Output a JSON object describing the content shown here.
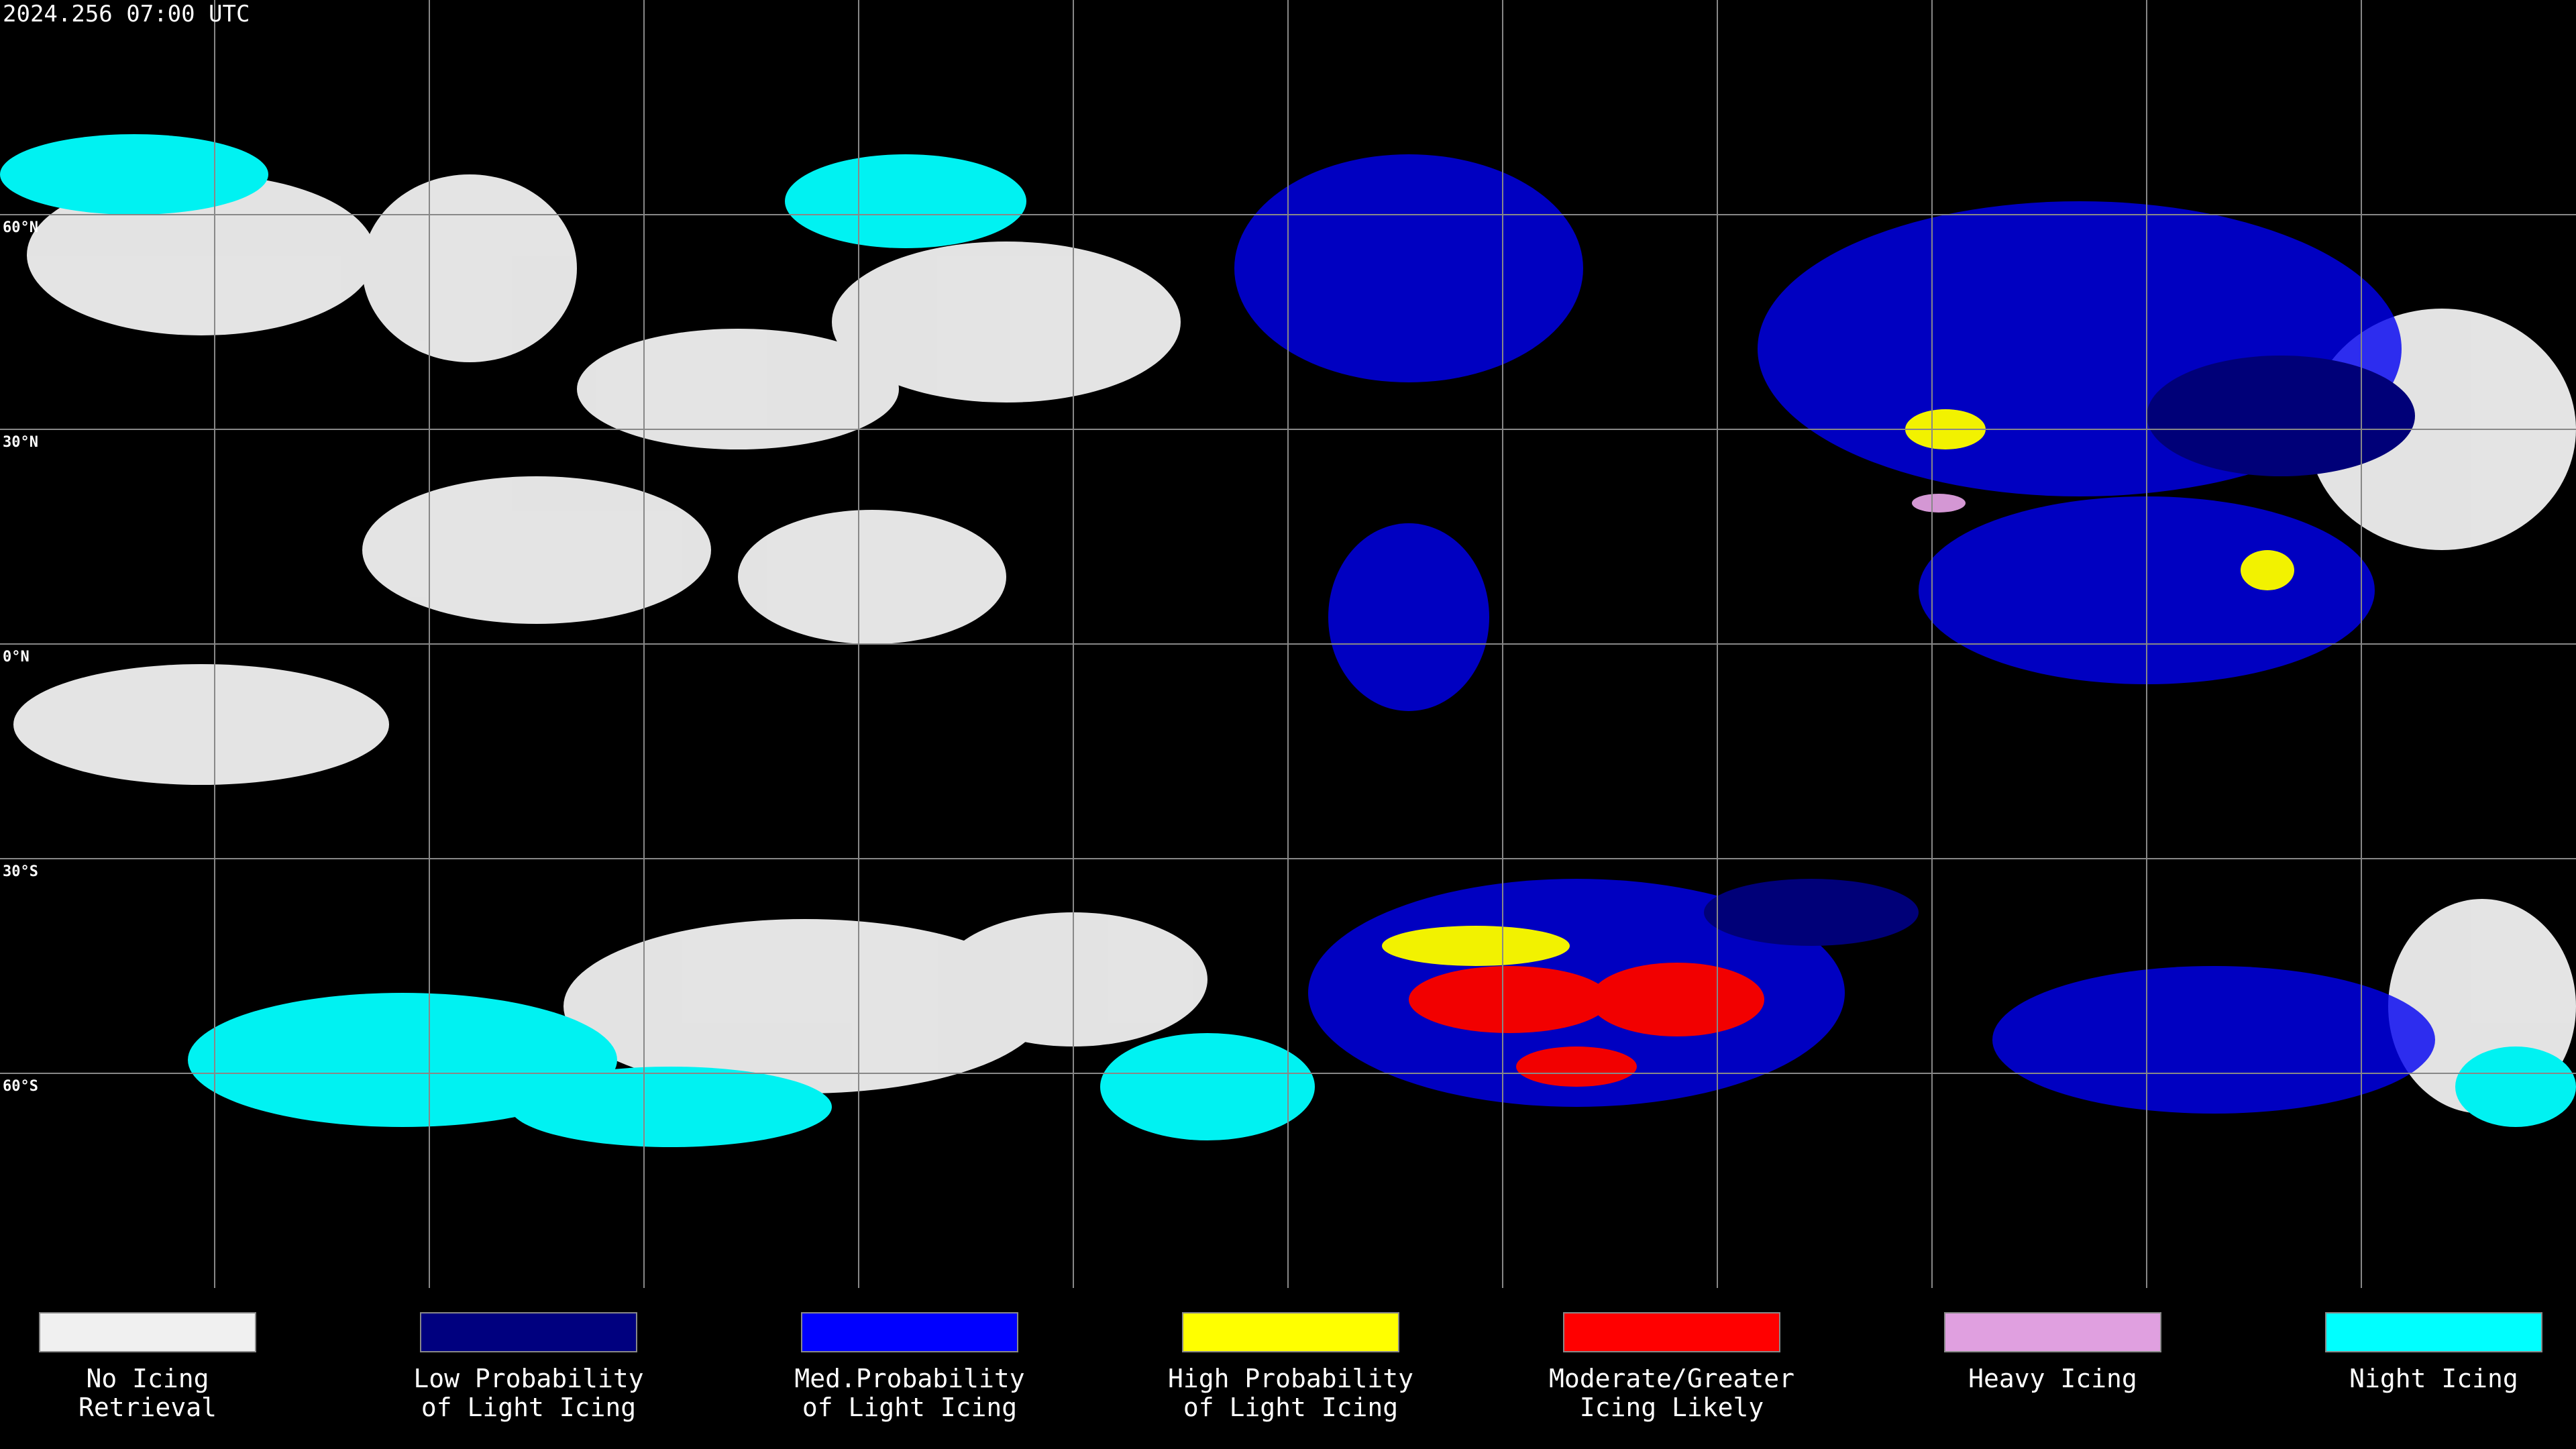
{
  "header": {
    "timestamp": "2024.256 07:00 UTC"
  },
  "map": {
    "latitude_labels": [
      "60°N",
      "30°N",
      "0°N",
      "30°S",
      "60°S"
    ]
  },
  "legend": {
    "items": [
      {
        "label_lines": [
          "No Icing",
          "Retrieval"
        ],
        "color": "#f0f0f0"
      },
      {
        "label_lines": [
          "Low Probability",
          "of Light Icing"
        ],
        "color": "#00007f"
      },
      {
        "label_lines": [
          "Med.Probability",
          "of Light Icing"
        ],
        "color": "#0000ff"
      },
      {
        "label_lines": [
          "High Probability",
          "of Light Icing"
        ],
        "color": "#ffff00"
      },
      {
        "label_lines": [
          "Moderate/Greater",
          "Icing Likely"
        ],
        "color": "#ff0000"
      },
      {
        "label_lines": [
          "Heavy Icing"
        ],
        "color": "#e0a0e0"
      },
      {
        "label_lines": [
          "Night Icing"
        ],
        "color": "#00ffff"
      }
    ]
  }
}
